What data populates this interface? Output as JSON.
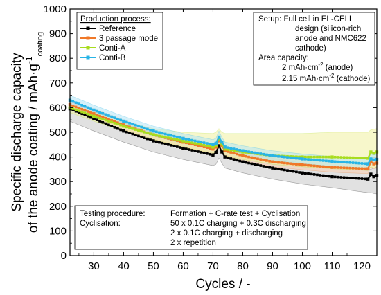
{
  "chart_data": {
    "type": "line",
    "xlabel": "Cycles / -",
    "ylabel_line1": "Specific discharge capacity",
    "ylabel_line2": "of the anode coating / mAh·g",
    "ylabel_sup": "-1",
    "ylabel_sub": "coating",
    "xlim": [
      22,
      125
    ],
    "ylim": [
      0,
      1000
    ],
    "xticks": [
      30,
      40,
      50,
      60,
      70,
      80,
      90,
      100,
      110,
      120
    ],
    "yticks": [
      0,
      100,
      200,
      300,
      400,
      500,
      600,
      700,
      800,
      900,
      1000
    ],
    "legend_title": "Production process:",
    "legend_placement": "top-left",
    "series": [
      {
        "name": "Reference",
        "color": "#000000",
        "band": "#c8c8c8",
        "x": [
          22,
          30,
          40,
          50,
          60,
          70,
          71,
          72,
          73,
          74,
          80,
          90,
          100,
          110,
          122,
          123,
          124,
          125
        ],
        "y": [
          595,
          555,
          505,
          465,
          435,
          408,
          418,
          445,
          420,
          400,
          380,
          355,
          335,
          320,
          310,
          330,
          320,
          325
        ],
        "band_upper": [
          625,
          585,
          540,
          500,
          470,
          445,
          455,
          475,
          455,
          440,
          420,
          395,
          375,
          360,
          345,
          350,
          355,
          360
        ],
        "band_lower": [
          545,
          505,
          460,
          420,
          390,
          365,
          370,
          395,
          375,
          355,
          335,
          310,
          290,
          275,
          255,
          255,
          252,
          250
        ]
      },
      {
        "name": "3 passage mode",
        "color": "#f07828",
        "band": "#fbd2b4",
        "x": [
          22,
          30,
          40,
          50,
          60,
          70,
          71,
          72,
          73,
          74,
          80,
          90,
          100,
          110,
          122,
          123,
          124,
          125
        ],
        "y": [
          612,
          575,
          530,
          490,
          460,
          432,
          440,
          470,
          445,
          425,
          405,
          380,
          368,
          358,
          352,
          380,
          372,
          375
        ],
        "band_upper": [
          630,
          595,
          550,
          510,
          480,
          452,
          460,
          490,
          465,
          445,
          425,
          400,
          388,
          378,
          372,
          395,
          392,
          395
        ],
        "band_lower": [
          595,
          555,
          510,
          470,
          440,
          412,
          420,
          450,
          425,
          405,
          385,
          360,
          348,
          338,
          332,
          360,
          352,
          355
        ]
      },
      {
        "name": "Conti-A",
        "color": "#a8dc1e",
        "band": "#f0f0a0",
        "x": [
          22,
          30,
          40,
          50,
          60,
          70,
          71,
          72,
          73,
          74,
          80,
          90,
          100,
          110,
          122,
          123,
          124,
          125
        ],
        "y": [
          600,
          565,
          525,
          490,
          465,
          440,
          448,
          475,
          452,
          432,
          420,
          405,
          400,
          400,
          395,
          420,
          415,
          420
        ],
        "band_upper": [
          615,
          580,
          545,
          515,
          500,
          495,
          500,
          515,
          500,
          495,
          495,
          495,
          495,
          500,
          500,
          510,
          512,
          515
        ],
        "band_lower": [
          580,
          545,
          505,
          470,
          440,
          415,
          420,
          445,
          425,
          405,
          390,
          370,
          360,
          352,
          345,
          360,
          355,
          360
        ]
      },
      {
        "name": "Conti-B",
        "color": "#28b4e6",
        "band": "#b4e6f5",
        "x": [
          22,
          30,
          40,
          50,
          60,
          70,
          71,
          72,
          73,
          74,
          80,
          90,
          100,
          110,
          122,
          123,
          124,
          125
        ],
        "y": [
          630,
          590,
          545,
          505,
          475,
          450,
          455,
          480,
          460,
          440,
          425,
          405,
          392,
          382,
          372,
          392,
          388,
          390
        ],
        "band_upper": [
          650,
          610,
          565,
          525,
          495,
          470,
          475,
          505,
          480,
          460,
          445,
          425,
          412,
          402,
          392,
          412,
          408,
          410
        ],
        "band_lower": [
          610,
          570,
          525,
          485,
          455,
          430,
          435,
          460,
          440,
          420,
          405,
          385,
          372,
          362,
          352,
          372,
          368,
          370
        ]
      }
    ],
    "setup_box": {
      "placement": "top-right",
      "lines": [
        "Setup:  Full cell in EL-CELL",
        "design (silicon-rich",
        "anode and NMC622",
        "cathode)",
        "Area capacity:",
        "2 mAh·cm",
        "2.15 mAh·cm"
      ],
      "unit_sup": "-2",
      "anode_suffix": " (anode)",
      "cathode_suffix": " (cathode)"
    },
    "testing_box": {
      "placement": "bottom-left",
      "rows": [
        {
          "label": "Testing procedure:",
          "value": "Formation + C-rate test + Cyclisation"
        },
        {
          "label": "Cyclisation:",
          "value": "50 x 0.1C charging + 0.3C discharging"
        },
        {
          "label": "",
          "value": "2 x 0.1C charging + discharging"
        },
        {
          "label": "",
          "value": "2 x repetition"
        }
      ]
    }
  }
}
